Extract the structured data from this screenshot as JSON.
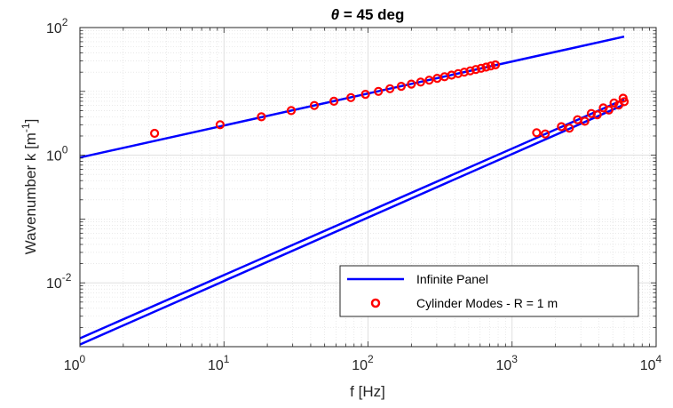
{
  "chart_data": {
    "type": "scatter",
    "title_symbol": "θ",
    "title": " = 45 deg",
    "xlabel": "f [Hz]",
    "ylabel_main": "Wavenumber k [m",
    "ylabel_sup": "-1",
    "ylabel_end": "]",
    "x_scale": "log",
    "y_scale": "log",
    "xlim": [
      1,
      10000
    ],
    "ylim": [
      0.001,
      100
    ],
    "grid": true,
    "legend_position": "lower-right",
    "x_ticks": [
      {
        "value": 1,
        "base": "10",
        "exp": "0"
      },
      {
        "value": 10,
        "base": "10",
        "exp": "1"
      },
      {
        "value": 100,
        "base": "10",
        "exp": "2"
      },
      {
        "value": 1000,
        "base": "10",
        "exp": "3"
      },
      {
        "value": 10000,
        "base": "10",
        "exp": "4"
      }
    ],
    "y_ticks": [
      {
        "value": 0.01,
        "base": "10",
        "exp": "-2"
      },
      {
        "value": 1,
        "base": "10",
        "exp": "0"
      },
      {
        "value": 100,
        "base": "10",
        "exp": "2"
      }
    ],
    "series": [
      {
        "name": "Infinite Panel",
        "style": "line",
        "color": "#0000ff",
        "segments": [
          {
            "x": [
              1,
              6000
            ],
            "y": [
              0.92,
              72
            ]
          },
          {
            "x": [
              1,
              6000
            ],
            "y": [
              0.00135,
              7.5
            ]
          },
          {
            "x": [
              1,
              6000
            ],
            "y": [
              0.00108,
              6.2
            ]
          }
        ]
      },
      {
        "name": "Cylinder Modes - R = 1 m",
        "style": "marker",
        "color": "#ff0000",
        "x": [
          3.3,
          9.4,
          18.2,
          29.3,
          42.4,
          58,
          76,
          96,
          118,
          142,
          170,
          200,
          232,
          266,
          302,
          340,
          380,
          422,
          466,
          512,
          560,
          610,
          660,
          712,
          766,
          1480,
          1700,
          2200,
          2500,
          2850,
          3200,
          3550,
          3900,
          4300,
          4700,
          5100,
          5500,
          5900,
          6000
        ],
        "y": [
          2.2,
          3.0,
          4.0,
          5.0,
          6.0,
          7.0,
          8.0,
          9.0,
          10.0,
          11.0,
          12.0,
          13.0,
          14.0,
          15.0,
          16.0,
          17.0,
          18.0,
          19.0,
          20.0,
          21.0,
          22.0,
          23.0,
          24.0,
          25.0,
          26.0,
          2.25,
          2.15,
          2.8,
          2.65,
          3.6,
          3.4,
          4.5,
          4.3,
          5.5,
          5.1,
          6.6,
          6.1,
          7.8,
          6.9
        ]
      }
    ],
    "colors": {
      "line": "#0000ff",
      "marker": "#ff0000",
      "grid": "#dcdcdc",
      "axes": "#262626"
    }
  }
}
